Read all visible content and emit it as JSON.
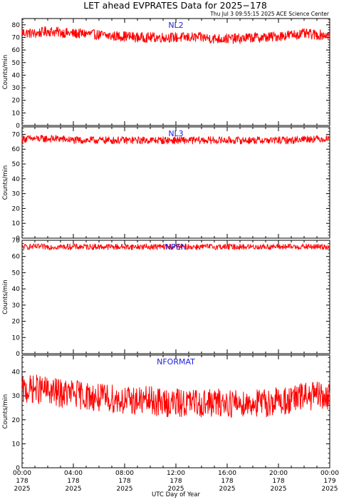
{
  "header": {
    "title": "LET ahead EVPRATES Data for 2025−178",
    "stamp": "Thu Jul  3 09:55:15 2025 ACE Science Center"
  },
  "colors": {
    "series": "#ff0000",
    "label": "#2222dd",
    "axis": "#000000"
  },
  "x_axis": {
    "title": "UTC Day of Year",
    "ticks": [
      {
        "time": "00:00",
        "doy": "178",
        "year": "2025"
      },
      {
        "time": "04:00",
        "doy": "178",
        "year": "2025"
      },
      {
        "time": "08:00",
        "doy": "178",
        "year": "2025"
      },
      {
        "time": "12:00",
        "doy": "178",
        "year": "2025"
      },
      {
        "time": "16:00",
        "doy": "178",
        "year": "2025"
      },
      {
        "time": "20:00",
        "doy": "178",
        "year": "2025"
      },
      {
        "time": "00:00",
        "doy": "179",
        "year": "2025"
      }
    ]
  },
  "chart_data": [
    {
      "type": "line",
      "name": "NL2",
      "ylabel": "Counts/min",
      "ylim": [
        0,
        85
      ],
      "yticks": [
        0,
        10,
        20,
        30,
        40,
        50,
        60,
        70,
        80
      ],
      "x_range_hours": [
        0,
        24
      ],
      "x": [
        0,
        1,
        2,
        3,
        4,
        5,
        6,
        7,
        8,
        9,
        10,
        11,
        12,
        13,
        14,
        15,
        16,
        17,
        18,
        19,
        20,
        21,
        22,
        23,
        24
      ],
      "values": [
        74,
        73,
        75,
        74,
        73,
        73,
        72,
        71,
        71,
        70,
        70,
        70,
        70,
        70,
        70,
        69,
        69,
        69,
        70,
        70,
        71,
        72,
        73,
        72,
        72
      ],
      "noise_amplitude": 4
    },
    {
      "type": "line",
      "name": "NL3",
      "ylabel": "Counts/min",
      "ylim": [
        0,
        75
      ],
      "yticks": [
        0,
        10,
        20,
        30,
        40,
        50,
        60,
        70
      ],
      "x_range_hours": [
        0,
        24
      ],
      "x": [
        0,
        1,
        2,
        3,
        4,
        5,
        6,
        7,
        8,
        9,
        10,
        11,
        12,
        13,
        14,
        15,
        16,
        17,
        18,
        19,
        20,
        21,
        22,
        23,
        24
      ],
      "values": [
        67,
        67,
        67,
        67,
        66,
        66,
        66,
        66,
        66,
        66,
        66,
        66,
        66,
        66,
        66,
        66,
        66,
        66,
        66,
        66,
        66,
        66,
        67,
        67,
        67
      ],
      "noise_amplitude": 2.5
    },
    {
      "type": "line",
      "name": "NPEN",
      "ylabel": "Counts/min",
      "ylim": [
        0,
        70
      ],
      "yticks": [
        0,
        10,
        20,
        30,
        40,
        50,
        60,
        70
      ],
      "x_range_hours": [
        0,
        24
      ],
      "x": [
        0,
        1,
        2,
        3,
        4,
        5,
        6,
        7,
        8,
        9,
        10,
        11,
        12,
        13,
        14,
        15,
        16,
        17,
        18,
        19,
        20,
        21,
        22,
        23,
        24
      ],
      "values": [
        66,
        66,
        66,
        66,
        66,
        66,
        66,
        66,
        66,
        66,
        66,
        66,
        66,
        66,
        66,
        66,
        66,
        66,
        66,
        66,
        66,
        66,
        66,
        66,
        66
      ],
      "noise_amplitude": 1.8
    },
    {
      "type": "line",
      "name": "NFORMAT",
      "ylabel": "Counts/min",
      "ylim": [
        0,
        47
      ],
      "yticks": [
        0,
        10,
        20,
        30,
        40
      ],
      "x_range_hours": [
        0,
        24
      ],
      "x": [
        0,
        1,
        2,
        3,
        4,
        5,
        6,
        7,
        8,
        9,
        10,
        11,
        12,
        13,
        14,
        15,
        16,
        17,
        18,
        19,
        20,
        21,
        22,
        23,
        24
      ],
      "values": [
        32,
        33,
        32,
        31,
        31,
        30,
        29,
        29,
        28,
        28,
        28,
        27,
        27,
        27,
        27,
        27,
        27,
        27,
        27,
        27,
        28,
        28,
        30,
        30,
        29
      ],
      "noise_amplitude": 6
    }
  ]
}
